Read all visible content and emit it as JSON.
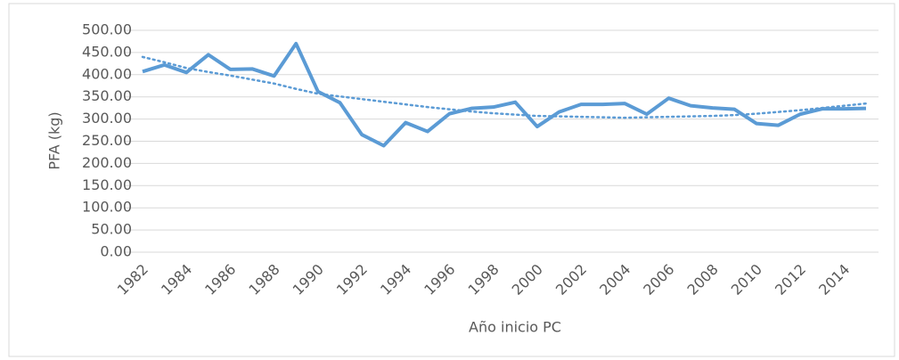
{
  "chart_data": {
    "type": "line",
    "x_label": "Año inicio PC",
    "y_label": "PFA (kg)",
    "categories": [
      "1982",
      null,
      "1984",
      null,
      "1986",
      null,
      "1988",
      null,
      "1990",
      null,
      "1992",
      null,
      "1994",
      null,
      "1996",
      null,
      "1998",
      null,
      "2000",
      null,
      "2002",
      null,
      "2004",
      null,
      "2006",
      null,
      "2008",
      null,
      "2010",
      null,
      "2012",
      null,
      "2014",
      null
    ],
    "series": [
      {
        "color": "#5b9bd5",
        "style": "solid",
        "values": [
          407,
          422,
          405,
          445,
          412,
          413,
          397,
          470,
          362,
          337,
          265,
          240,
          292,
          272,
          312,
          324,
          327,
          338,
          283,
          316,
          333,
          333,
          335,
          311,
          347,
          330,
          325,
          322,
          290,
          286,
          311,
          323,
          323,
          324
        ]
      },
      {
        "color": "#5b9bd5",
        "style": "dotted",
        "values": [
          440,
          428,
          415,
          406,
          398,
          389,
          380,
          368,
          357,
          351,
          345,
          339,
          333,
          327,
          322,
          317,
          313,
          310,
          307,
          306,
          305,
          304,
          303,
          304,
          305,
          306,
          307,
          309,
          312,
          316,
          320,
          325,
          330,
          335
        ]
      }
    ],
    "ylim": [
      0,
      500
    ],
    "yticks": [
      {
        "value": 0,
        "label": "0.00"
      },
      {
        "value": 50,
        "label": "50.00"
      },
      {
        "value": 100,
        "label": "100.00"
      },
      {
        "value": 150,
        "label": "150.00"
      },
      {
        "value": 200,
        "label": "200.00"
      },
      {
        "value": 250,
        "label": "250.00"
      },
      {
        "value": 300,
        "label": "300.00"
      },
      {
        "value": 350,
        "label": "350.00"
      },
      {
        "value": 400,
        "label": "400.00"
      },
      {
        "value": 450,
        "label": "450.00"
      },
      {
        "value": 500,
        "label": "500.00"
      }
    ],
    "grid": true
  }
}
